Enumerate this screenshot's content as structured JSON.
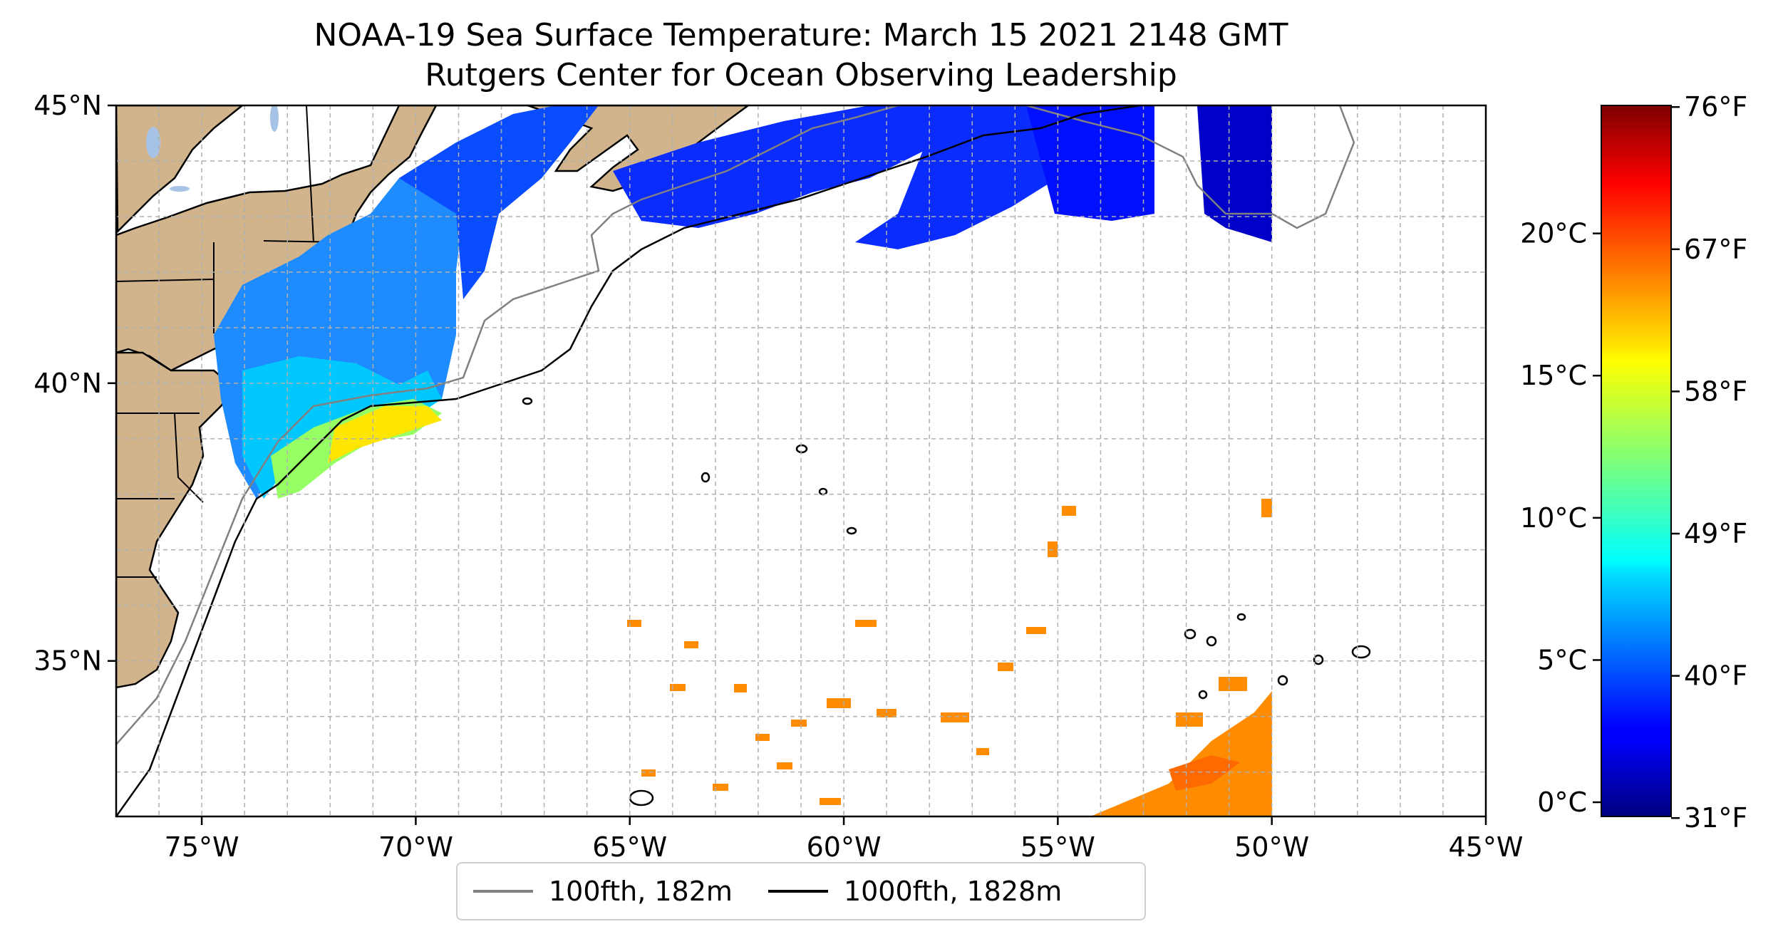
{
  "title": "NOAA-19 Sea Surface Temperature: March 15 2021 2148 GMT",
  "subtitle": "Rutgers Center for Ocean Observing Leadership",
  "map": {
    "extent": {
      "lon_min": -77,
      "lon_max": -45,
      "lat_min": 32.2,
      "lat_max": 45
    },
    "x_ticks": [
      {
        "value": -75,
        "label": "75°W"
      },
      {
        "value": -70,
        "label": "70°W"
      },
      {
        "value": -65,
        "label": "65°W"
      },
      {
        "value": -60,
        "label": "60°W"
      },
      {
        "value": -55,
        "label": "55°W"
      },
      {
        "value": -50,
        "label": "50°W"
      },
      {
        "value": -45,
        "label": "45°W"
      }
    ],
    "y_ticks": [
      {
        "value": 45,
        "label": "45°N"
      },
      {
        "value": 40,
        "label": "40°N"
      },
      {
        "value": 35,
        "label": "35°N"
      }
    ],
    "gridlines": "dashed, every 1°",
    "land_color": "#d2b48c",
    "lake_color": "#a6c3e6"
  },
  "legend": {
    "placement": "bottom-center, below map",
    "items": [
      {
        "label": "100fth, 182m",
        "color": "#808080"
      },
      {
        "label": "1000fth, 1828m",
        "color": "#000000"
      }
    ]
  },
  "colorbar": {
    "colormap": "jet",
    "c_min": -0.5,
    "c_max": 24.5,
    "celsius_ticks": [
      {
        "value": 0,
        "label": "0°C"
      },
      {
        "value": 5,
        "label": "5°C"
      },
      {
        "value": 10,
        "label": "10°C"
      },
      {
        "value": 15,
        "label": "15°C"
      },
      {
        "value": 20,
        "label": "20°C"
      }
    ],
    "fahrenheit_ticks": [
      {
        "value": 31,
        "label": "31°F"
      },
      {
        "value": 40,
        "label": "40°F"
      },
      {
        "value": 49,
        "label": "49°F"
      },
      {
        "value": 58,
        "label": "58°F"
      },
      {
        "value": 67,
        "label": "67°F"
      },
      {
        "value": 76,
        "label": "76°F"
      }
    ]
  }
}
